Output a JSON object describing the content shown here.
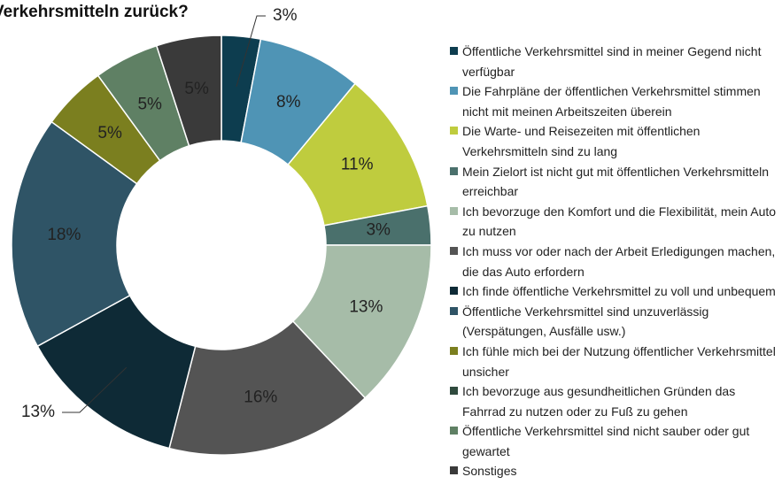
{
  "chart_data": {
    "type": "donut",
    "title": "Verkehrsmitteln zurück?",
    "categories": [
      "Öffentliche Verkehrsmittel sind in meiner Gegend nicht verfügbar",
      "Die Fahrpläne der öffentlichen Verkehrsmittel stimmen nicht mit meinen Arbeitszeiten überein",
      "Die Warte- und Reisezeiten mit öffentlichen Verkehrsmitteln sind zu lang",
      "Mein Zielort ist nicht gut mit öffentlichen Verkehrsmitteln erreichbar",
      "Ich bevorzuge den Komfort und die Flexibilität, mein Auto zu nutzen",
      "Ich muss vor oder nach der Arbeit Erledigungen machen, die das Auto erfordern",
      "Ich finde öffentliche Verkehrsmittel zu voll und unbequem",
      "Öffentliche Verkehrsmittel sind unzuverlässig (Verspätungen, Ausfälle usw.)",
      "Ich fühle mich bei der Nutzung öffentlicher Verkehrsmittel unsicher",
      "Ich bevorzuge aus gesundheitlichen Gründen das Fahrrad zu nutzen oder zu Fuß zu gehen",
      "Öffentliche Verkehrsmittel sind nicht sauber oder gut gewartet",
      "Sonstiges"
    ],
    "values": [
      3,
      8,
      11,
      3,
      13,
      16,
      13,
      18,
      5,
      0,
      5,
      5
    ],
    "value_labels": [
      "3%",
      "8%",
      "11%",
      "3%",
      "13%",
      "16%",
      "13%",
      "18%",
      "5%",
      null,
      "5%",
      "5%"
    ],
    "colors": [
      "#0d3d4f",
      "#4f94b5",
      "#bfcc3e",
      "#4a706c",
      "#a6bca8",
      "#545454",
      "#0e2a36",
      "#2f5466",
      "#7b7f1f",
      "#2f4a3e",
      "#5f8064",
      "#3a3a3a"
    ]
  }
}
